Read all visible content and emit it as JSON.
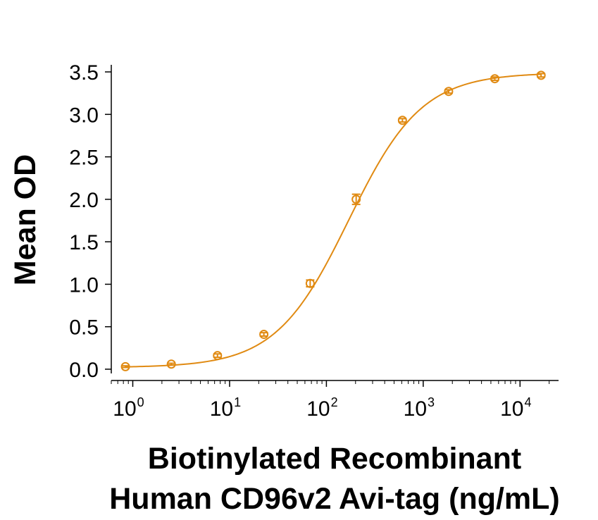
{
  "chart_data": {
    "type": "scatter",
    "title": "",
    "xlabel_lines": [
      "Biotinylated Recombinant",
      "Human CD96v2 Avi-tag (ng/mL)"
    ],
    "ylabel": "Mean OD",
    "x_scale": "log10",
    "xlim": [
      0.6,
      25000
    ],
    "ylim": [
      -0.05,
      3.6
    ],
    "x_ticks": [
      {
        "base": "10",
        "exp": "0",
        "value": 1
      },
      {
        "base": "10",
        "exp": "1",
        "value": 10
      },
      {
        "base": "10",
        "exp": "2",
        "value": 100
      },
      {
        "base": "10",
        "exp": "3",
        "value": 1000
      },
      {
        "base": "10",
        "exp": "4",
        "value": 10000
      }
    ],
    "y_ticks": [
      "0.0",
      "0.5",
      "1.0",
      "1.5",
      "2.0",
      "2.5",
      "3.0",
      "3.5"
    ],
    "grid": false,
    "color": "#E08A12",
    "series": [
      {
        "x": [
          0.84,
          2.5,
          7.5,
          22.6,
          68,
          203,
          610,
          1830,
          5490,
          16500
        ],
        "y": [
          0.03,
          0.06,
          0.16,
          0.41,
          1.01,
          2.0,
          2.93,
          3.27,
          3.42,
          3.46
        ],
        "err": [
          0.01,
          0.01,
          0.02,
          0.02,
          0.04,
          0.06,
          0.02,
          0.02,
          0.02,
          0.02
        ]
      }
    ],
    "fit": {
      "model": "4PL",
      "bottom": 0.02,
      "top": 3.49,
      "ec50": 170,
      "hill": 1.15
    }
  }
}
